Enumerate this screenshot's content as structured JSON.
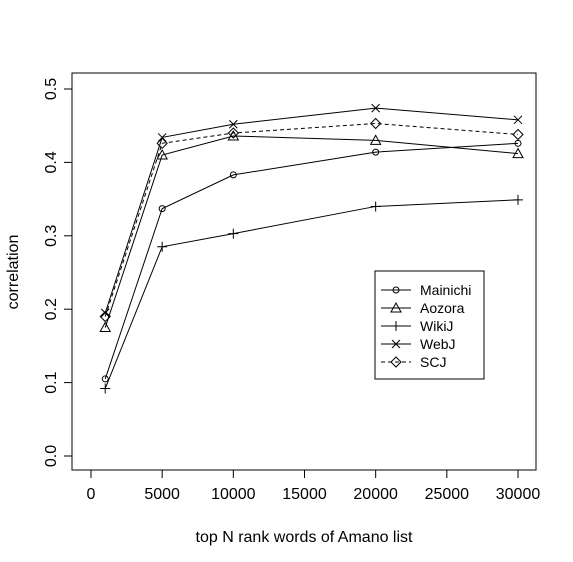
{
  "chart_data": {
    "type": "line",
    "title": "",
    "xlabel": "top N rank words of Amano list",
    "ylabel": "correlation",
    "xlim": [
      0,
      31000
    ],
    "ylim": [
      -0.02,
      0.52
    ],
    "x_ticks": [
      "0",
      "5000",
      "10000",
      "15000",
      "20000",
      "25000",
      "30000"
    ],
    "y_ticks": [
      "0.0",
      "0.1",
      "0.2",
      "0.3",
      "0.4",
      "0.5"
    ],
    "x": [
      1000,
      5000,
      10000,
      20000,
      30000
    ],
    "series": [
      {
        "name": "Mainichi",
        "values": [
          0.105,
          0.337,
          0.383,
          0.414,
          0.426
        ],
        "marker": "circle",
        "dash": "solid"
      },
      {
        "name": "Aozora",
        "values": [
          0.175,
          0.41,
          0.436,
          0.43,
          0.412
        ],
        "marker": "triangle",
        "dash": "solid"
      },
      {
        "name": "WikiJ",
        "values": [
          0.092,
          0.285,
          0.303,
          0.34,
          0.349
        ],
        "marker": "plus",
        "dash": "solid"
      },
      {
        "name": "WebJ",
        "values": [
          0.195,
          0.434,
          0.452,
          0.474,
          0.458
        ],
        "marker": "cross",
        "dash": "solid"
      },
      {
        "name": "SCJ",
        "values": [
          0.19,
          0.426,
          0.44,
          0.453,
          0.438
        ],
        "marker": "diamond",
        "dash": "dashed"
      }
    ],
    "legend_position": "right",
    "grid": false
  }
}
